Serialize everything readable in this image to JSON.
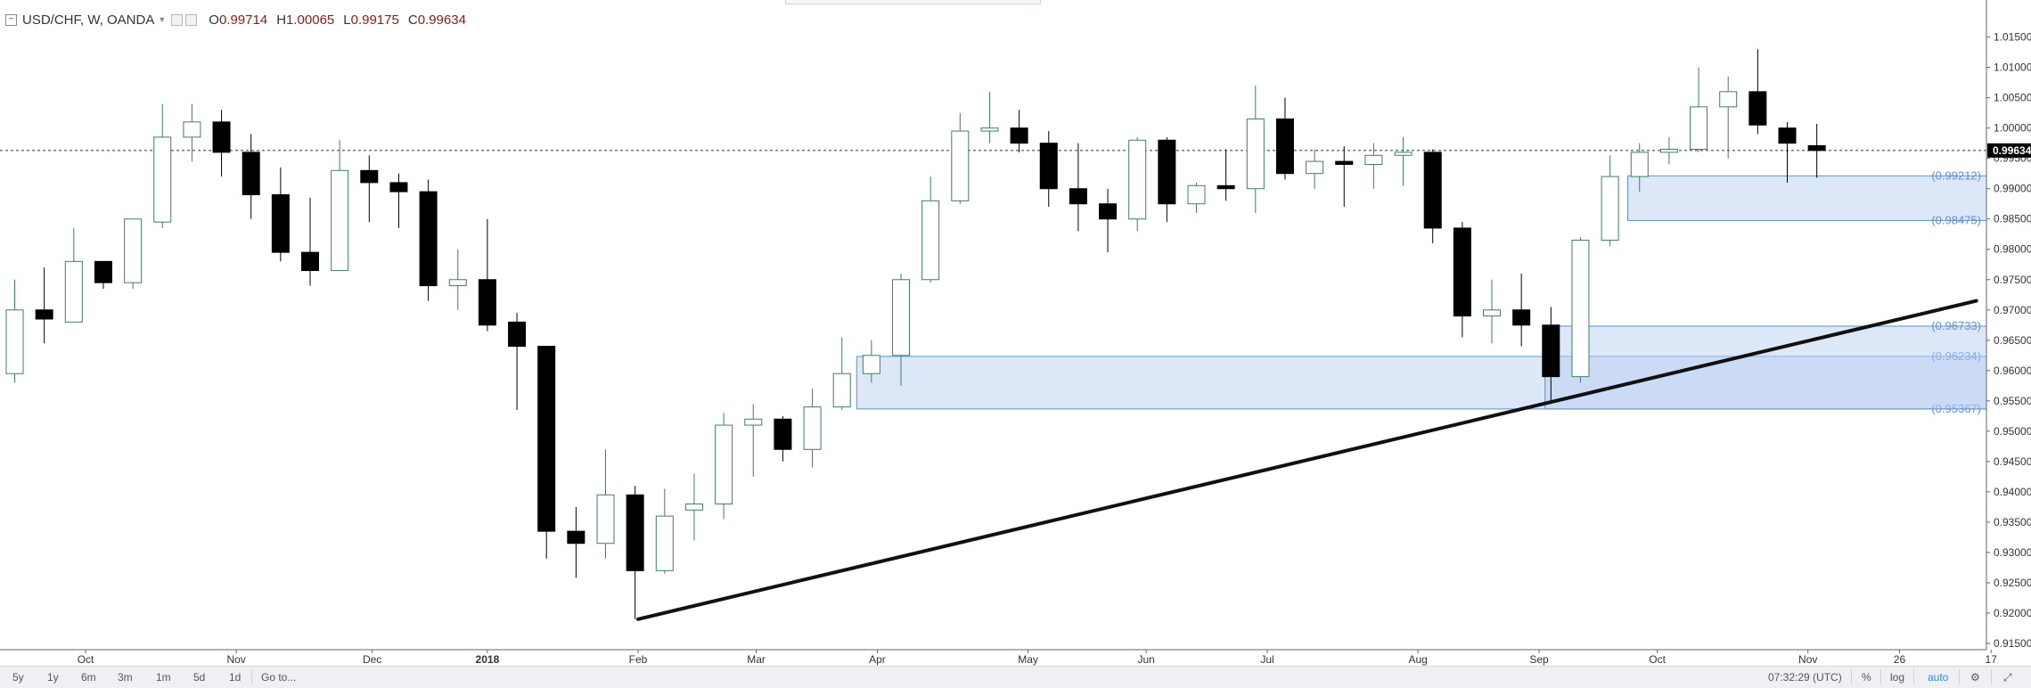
{
  "legend": {
    "symbol": "USD/CHF, W, OANDA",
    "open_label": "O",
    "open": "0.99714",
    "high_label": "H",
    "high": "1.00065",
    "low_label": "L",
    "low": "0.99175",
    "close_label": "C",
    "close": "0.99634"
  },
  "timeframes": [
    "5y",
    "1y",
    "6m",
    "3m",
    "1m",
    "5d",
    "1d"
  ],
  "goto_label": "Go to...",
  "clock": "07:32:29 (UTC)",
  "scale_options": {
    "percent": "%",
    "log": "log",
    "auto": "auto"
  },
  "colors": {
    "up_border": "#3f7f64",
    "down_body": "#000000",
    "zone_fill": "#b9cff2",
    "zone_line": "#5e90d6",
    "zone_label": "#5e90d6",
    "trendline": "#111111"
  },
  "chart_data": {
    "type": "candlestick",
    "symbol": "USD/CHF",
    "interval": "W",
    "source": "OANDA",
    "y_axis_ticks": [
      "1.01500",
      "1.01000",
      "1.00500",
      "1.00000",
      "0.99500",
      "0.99000",
      "0.98500",
      "0.98000",
      "0.97500",
      "0.97000",
      "0.96500",
      "0.96000",
      "0.95500",
      "0.95000",
      "0.94500",
      "0.94000",
      "0.93500",
      "0.93000",
      "0.92500",
      "0.92000",
      "0.91500"
    ],
    "ylim": [
      0.9125,
      1.0195
    ],
    "x_axis_labels": [
      "Oct",
      "Nov",
      "Dec",
      "2018",
      "Feb",
      "Mar",
      "Apr",
      "May",
      "Jun",
      "Jul",
      "Aug",
      "Sep",
      "Oct",
      "Nov",
      "26",
      "17"
    ],
    "x_label_index": [
      2.4,
      7.5,
      12.1,
      16.0,
      21.1,
      25.1,
      29.2,
      34.3,
      38.3,
      42.4,
      47.5,
      51.6,
      55.6,
      60.7,
      63.8,
      66.9
    ],
    "last_price_label": "0.99634",
    "candles": [
      {
        "o": 0.9595,
        "h": 0.975,
        "l": 0.958,
        "c": 0.97
      },
      {
        "o": 0.97,
        "h": 0.977,
        "l": 0.9645,
        "c": 0.9685
      },
      {
        "o": 0.968,
        "h": 0.9835,
        "l": 0.968,
        "c": 0.978
      },
      {
        "o": 0.978,
        "h": 0.978,
        "l": 0.9735,
        "c": 0.9745
      },
      {
        "o": 0.9745,
        "h": 0.985,
        "l": 0.9735,
        "c": 0.985
      },
      {
        "o": 0.9845,
        "h": 1.004,
        "l": 0.9835,
        "c": 0.9985
      },
      {
        "o": 0.9985,
        "h": 1.004,
        "l": 0.9945,
        "c": 1.001
      },
      {
        "o": 1.001,
        "h": 1.003,
        "l": 0.992,
        "c": 0.996
      },
      {
        "o": 0.996,
        "h": 0.999,
        "l": 0.985,
        "c": 0.989
      },
      {
        "o": 0.989,
        "h": 0.9935,
        "l": 0.978,
        "c": 0.9795
      },
      {
        "o": 0.9795,
        "h": 0.9885,
        "l": 0.974,
        "c": 0.9765
      },
      {
        "o": 0.9765,
        "h": 0.998,
        "l": 0.9765,
        "c": 0.993
      },
      {
        "o": 0.993,
        "h": 0.9955,
        "l": 0.9845,
        "c": 0.991
      },
      {
        "o": 0.991,
        "h": 0.9925,
        "l": 0.9835,
        "c": 0.9895
      },
      {
        "o": 0.9895,
        "h": 0.9915,
        "l": 0.9715,
        "c": 0.974
      },
      {
        "o": 0.974,
        "h": 0.98,
        "l": 0.97,
        "c": 0.975
      },
      {
        "o": 0.975,
        "h": 0.985,
        "l": 0.9665,
        "c": 0.9675
      },
      {
        "o": 0.968,
        "h": 0.9695,
        "l": 0.9535,
        "c": 0.964
      },
      {
        "o": 0.964,
        "h": 0.964,
        "l": 0.929,
        "c": 0.9335
      },
      {
        "o": 0.9335,
        "h": 0.9375,
        "l": 0.9258,
        "c": 0.9315
      },
      {
        "o": 0.9315,
        "h": 0.947,
        "l": 0.929,
        "c": 0.9395
      },
      {
        "o": 0.9395,
        "h": 0.941,
        "l": 0.919,
        "c": 0.927
      },
      {
        "o": 0.927,
        "h": 0.9405,
        "l": 0.9265,
        "c": 0.936
      },
      {
        "o": 0.937,
        "h": 0.943,
        "l": 0.932,
        "c": 0.938
      },
      {
        "o": 0.938,
        "h": 0.953,
        "l": 0.9355,
        "c": 0.951
      },
      {
        "o": 0.951,
        "h": 0.9545,
        "l": 0.9425,
        "c": 0.952
      },
      {
        "o": 0.952,
        "h": 0.9525,
        "l": 0.945,
        "c": 0.947
      },
      {
        "o": 0.947,
        "h": 0.957,
        "l": 0.944,
        "c": 0.954
      },
      {
        "o": 0.954,
        "h": 0.9655,
        "l": 0.9535,
        "c": 0.9595
      },
      {
        "o": 0.9595,
        "h": 0.965,
        "l": 0.958,
        "c": 0.9625
      },
      {
        "o": 0.9625,
        "h": 0.976,
        "l": 0.9575,
        "c": 0.975
      },
      {
        "o": 0.975,
        "h": 0.992,
        "l": 0.9745,
        "c": 0.988
      },
      {
        "o": 0.988,
        "h": 1.0025,
        "l": 0.9875,
        "c": 0.9995
      },
      {
        "o": 0.9995,
        "h": 1.006,
        "l": 0.9975,
        "c": 1.0
      },
      {
        "o": 1.0,
        "h": 1.003,
        "l": 0.996,
        "c": 0.9975
      },
      {
        "o": 0.9975,
        "h": 0.9995,
        "l": 0.987,
        "c": 0.99
      },
      {
        "o": 0.99,
        "h": 0.9975,
        "l": 0.983,
        "c": 0.9875
      },
      {
        "o": 0.9875,
        "h": 0.99,
        "l": 0.9795,
        "c": 0.985
      },
      {
        "o": 0.985,
        "h": 0.9985,
        "l": 0.983,
        "c": 0.998
      },
      {
        "o": 0.998,
        "h": 0.9985,
        "l": 0.9845,
        "c": 0.9875
      },
      {
        "o": 0.9875,
        "h": 0.991,
        "l": 0.986,
        "c": 0.9905
      },
      {
        "o": 0.9905,
        "h": 0.9965,
        "l": 0.988,
        "c": 0.99
      },
      {
        "o": 0.99,
        "h": 1.007,
        "l": 0.986,
        "c": 1.0015
      },
      {
        "o": 1.0015,
        "h": 1.005,
        "l": 0.9915,
        "c": 0.9925
      },
      {
        "o": 0.9925,
        "h": 0.9965,
        "l": 0.99,
        "c": 0.9945
      },
      {
        "o": 0.9945,
        "h": 0.997,
        "l": 0.987,
        "c": 0.994
      },
      {
        "o": 0.994,
        "h": 0.9975,
        "l": 0.99,
        "c": 0.9955
      },
      {
        "o": 0.9955,
        "h": 0.9985,
        "l": 0.9905,
        "c": 0.996
      },
      {
        "o": 0.996,
        "h": 0.9965,
        "l": 0.981,
        "c": 0.9835
      },
      {
        "o": 0.9835,
        "h": 0.9845,
        "l": 0.9655,
        "c": 0.969
      },
      {
        "o": 0.969,
        "h": 0.975,
        "l": 0.9645,
        "c": 0.97
      },
      {
        "o": 0.97,
        "h": 0.976,
        "l": 0.964,
        "c": 0.9675
      },
      {
        "o": 0.9675,
        "h": 0.9705,
        "l": 0.9545,
        "c": 0.959
      },
      {
        "o": 0.959,
        "h": 0.982,
        "l": 0.958,
        "c": 0.9815
      },
      {
        "o": 0.9815,
        "h": 0.9955,
        "l": 0.9805,
        "c": 0.992
      },
      {
        "o": 0.992,
        "h": 0.9975,
        "l": 0.9895,
        "c": 0.996
      },
      {
        "o": 0.996,
        "h": 0.9985,
        "l": 0.994,
        "c": 0.9965
      },
      {
        "o": 0.9965,
        "h": 1.01,
        "l": 0.996,
        "c": 1.0035
      },
      {
        "o": 1.0035,
        "h": 1.0085,
        "l": 0.995,
        "c": 1.006
      },
      {
        "o": 1.006,
        "h": 1.013,
        "l": 0.999,
        "c": 1.0005
      },
      {
        "o": 1.0,
        "h": 1.001,
        "l": 0.991,
        "c": 0.9975
      },
      {
        "o": 0.9971,
        "h": 1.0007,
        "l": 0.9918,
        "c": 0.9963
      }
    ],
    "zones": [
      {
        "upper_label": "(0.99212)",
        "lower_label": "(0.98475)",
        "upper": 0.99212,
        "lower": 0.98475,
        "start_index": 54.6
      },
      {
        "upper_label": "(0.96234)",
        "lower_label": "(0.95367)",
        "upper": 0.96234,
        "lower": 0.95367,
        "start_index": 28.5
      },
      {
        "upper_label": "(0.96733)",
        "lower_label": "",
        "upper": 0.96733,
        "lower": 0.95367,
        "start_index": 51.8
      }
    ],
    "trendline": {
      "from": {
        "index": 21.1,
        "price": 0.919
      },
      "to": {
        "index": 66.4,
        "price": 0.9715
      }
    }
  }
}
